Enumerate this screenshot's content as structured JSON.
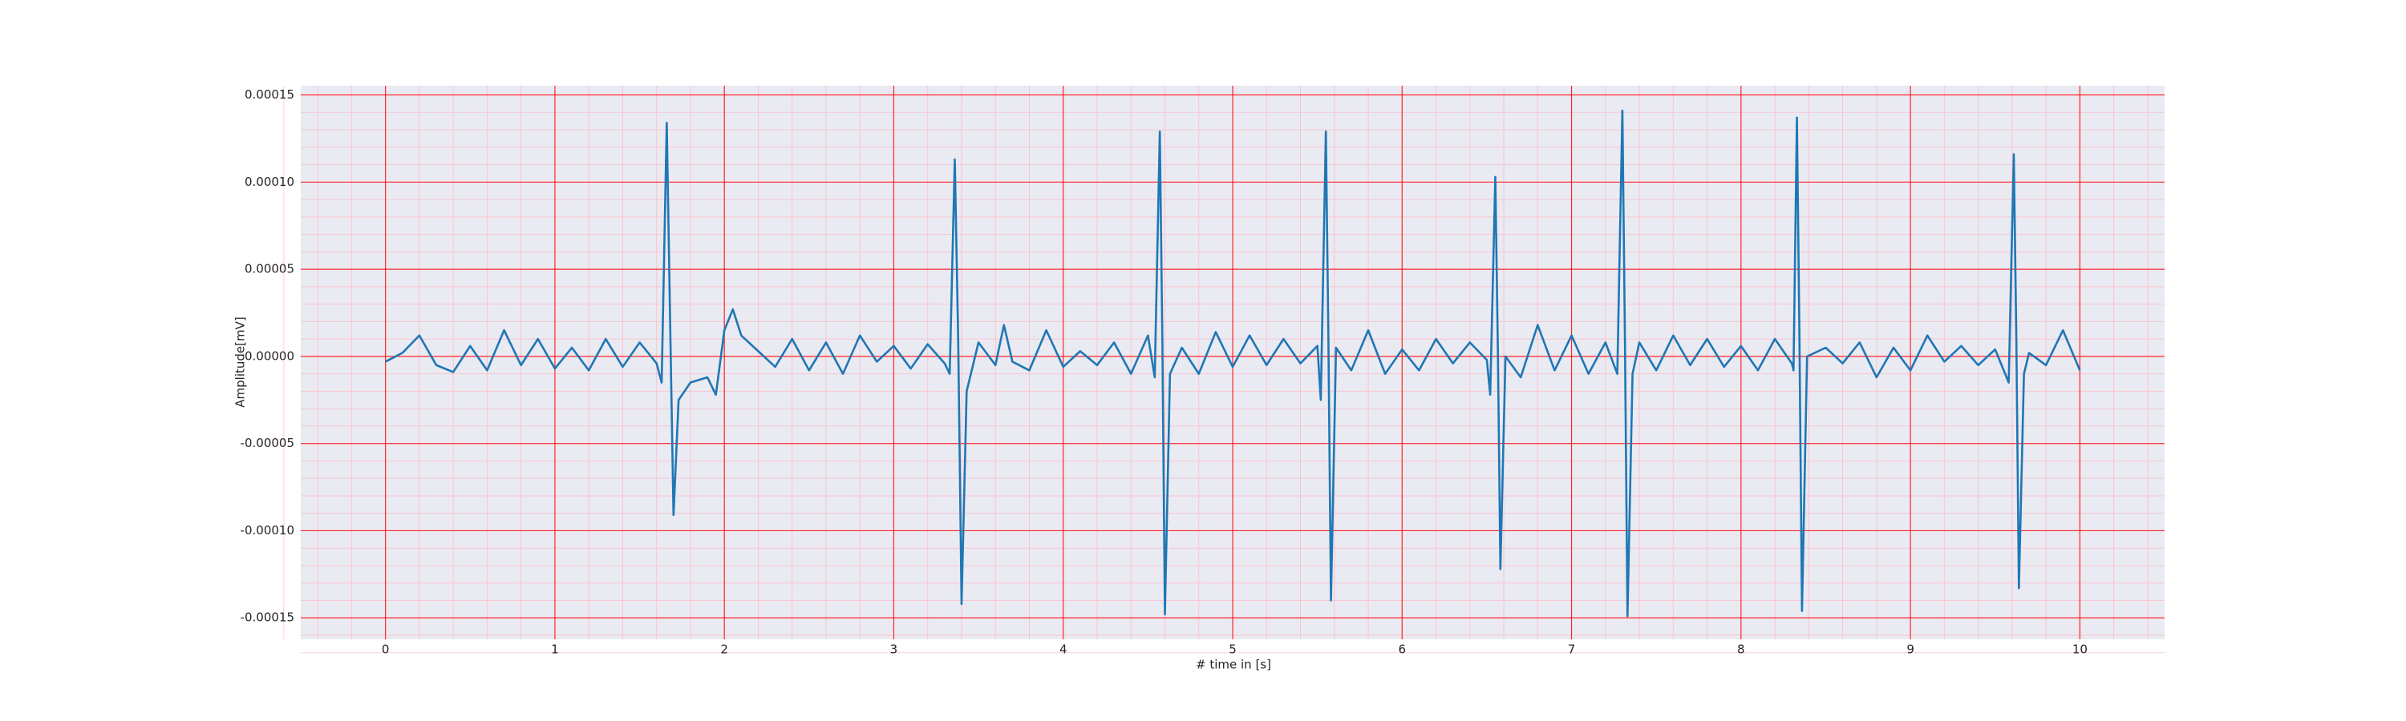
{
  "chart_data": {
    "type": "line",
    "xlabel": "# time in [s]",
    "ylabel": "Amplitude[mV]",
    "grid": true,
    "grid_color": "#ff0000",
    "minor_grid_color": "#ffb6c1",
    "background": "#eaeaf2",
    "xlim": [
      -0.5,
      10.5
    ],
    "xticks": [
      0,
      1,
      2,
      3,
      4,
      5,
      6,
      7,
      8,
      9,
      10
    ],
    "ylim": [
      -0.0001623,
      0.0001553
    ],
    "yticks": [
      {
        "value": -0.00015,
        "label": "-0.00015"
      },
      {
        "value": -0.0001,
        "label": "-0.00010"
      },
      {
        "value": -5e-05,
        "label": "-0.00005"
      },
      {
        "value": 0,
        "label": "0.00000"
      },
      {
        "value": 5e-05,
        "label": "0.00005"
      },
      {
        "value": 0.0001,
        "label": "0.00010"
      },
      {
        "value": 0.00015,
        "label": "0.00015"
      }
    ],
    "series": [
      {
        "color": "#1f77b4",
        "x": [
          0,
          0.1,
          0.2,
          0.3,
          0.4,
          0.5,
          0.6,
          0.7,
          0.8,
          0.9,
          1.0,
          1.1,
          1.2,
          1.3,
          1.4,
          1.5,
          1.6,
          1.63,
          1.66,
          1.68,
          1.7,
          1.73,
          1.8,
          1.9,
          1.95,
          2.0,
          2.05,
          2.1,
          2.2,
          2.3,
          2.4,
          2.5,
          2.6,
          2.7,
          2.8,
          2.9,
          3.0,
          3.1,
          3.2,
          3.3,
          3.33,
          3.36,
          3.38,
          3.4,
          3.43,
          3.5,
          3.6,
          3.65,
          3.7,
          3.8,
          3.9,
          4.0,
          4.1,
          4.2,
          4.3,
          4.4,
          4.5,
          4.54,
          4.57,
          4.585,
          4.6,
          4.63,
          4.7,
          4.8,
          4.9,
          5.0,
          5.1,
          5.2,
          5.3,
          5.4,
          5.5,
          5.52,
          5.55,
          5.565,
          5.58,
          5.61,
          5.7,
          5.8,
          5.9,
          6.0,
          6.1,
          6.2,
          6.3,
          6.4,
          6.5,
          6.52,
          6.55,
          6.565,
          6.58,
          6.61,
          6.7,
          6.8,
          6.9,
          7.0,
          7.1,
          7.2,
          7.27,
          7.3,
          7.315,
          7.33,
          7.36,
          7.4,
          7.5,
          7.6,
          7.7,
          7.8,
          7.9,
          8.0,
          8.1,
          8.2,
          8.3,
          8.31,
          8.33,
          8.345,
          8.36,
          8.39,
          8.5,
          8.6,
          8.7,
          8.8,
          8.9,
          9.0,
          9.1,
          9.2,
          9.3,
          9.4,
          9.5,
          9.58,
          9.61,
          9.625,
          9.64,
          9.67,
          9.7,
          9.8,
          9.9,
          10.0
        ],
        "values": [
          -3e-06,
          2e-06,
          1.2e-05,
          -5e-06,
          -9e-06,
          6e-06,
          -8e-06,
          1.5e-05,
          -5e-06,
          1e-05,
          -7e-06,
          5e-06,
          -8e-06,
          1e-05,
          -6e-06,
          8e-06,
          -4e-06,
          -1.5e-05,
          0.000134,
          2e-05,
          -9.1e-05,
          -2.5e-05,
          -1.5e-05,
          -1.2e-05,
          -2.2e-05,
          1.5e-05,
          2.7e-05,
          1.2e-05,
          3e-06,
          -6e-06,
          1e-05,
          -8e-06,
          8e-06,
          -1e-05,
          1.2e-05,
          -3e-06,
          6e-06,
          -7e-06,
          7e-06,
          -4e-06,
          -1e-05,
          0.000113,
          1e-05,
          -0.000142,
          -2e-05,
          8e-06,
          -5e-06,
          1.8e-05,
          -3e-06,
          -8e-06,
          1.5e-05,
          -6e-06,
          3e-06,
          -5e-06,
          8e-06,
          -1e-05,
          1.2e-05,
          -1.2e-05,
          0.000129,
          1e-05,
          -0.000148,
          -1e-05,
          5e-06,
          -1e-05,
          1.4e-05,
          -6e-06,
          1.2e-05,
          -5e-06,
          1e-05,
          -4e-06,
          6e-06,
          -2.5e-05,
          0.000129,
          1e-05,
          -0.00014,
          5e-06,
          -8e-06,
          1.5e-05,
          -1e-05,
          4e-06,
          -8e-06,
          1e-05,
          -4e-06,
          8e-06,
          -2e-06,
          -2.2e-05,
          0.000103,
          5e-06,
          -0.000122,
          0,
          -1.2e-05,
          1.8e-05,
          -8e-06,
          1.2e-05,
          -1e-05,
          8e-06,
          -1e-05,
          0.000141,
          1e-05,
          -0.000149,
          -1e-05,
          8e-06,
          -8e-06,
          1.2e-05,
          -5e-06,
          1e-05,
          -6e-06,
          6e-06,
          -8e-06,
          1e-05,
          -4e-06,
          -8e-06,
          0.000137,
          1e-05,
          -0.000146,
          0,
          5e-06,
          -4e-06,
          8e-06,
          -1.2e-05,
          5e-06,
          -8e-06,
          1.2e-05,
          -3e-06,
          6e-06,
          -5e-06,
          4e-06,
          -1.5e-05,
          0.000116,
          1e-05,
          -0.000133,
          -1e-05,
          2e-06,
          -5e-06,
          1.5e-05,
          -8e-06
        ]
      }
    ]
  }
}
